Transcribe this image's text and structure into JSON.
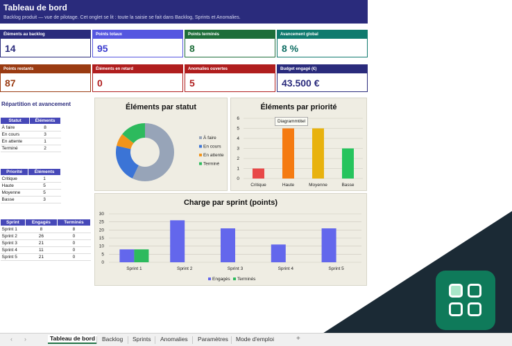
{
  "header": {
    "title": "Tableau de bord",
    "subtitle": "Backlog produit — vue de pilotage. Cet onglet se lit : toute la saisie se fait dans Backlog, Sprints et Anomalies."
  },
  "kpis": [
    {
      "label": "Éléments au backlog",
      "value": "14",
      "color": "#2a2b7c",
      "text_color": "#2a2b7c"
    },
    {
      "label": "Points totaux",
      "value": "95",
      "color": "#5556e0",
      "text_color": "#3b3ccf"
    },
    {
      "label": "Points terminés",
      "value": "8",
      "color": "#1e6e3a",
      "text_color": "#1e6e3a"
    },
    {
      "label": "Avancement global",
      "value": "8 %",
      "color": "#0f7a6e",
      "text_color": "#0f6e64"
    },
    {
      "label": "Points restants",
      "value": "87",
      "color": "#9a3b12",
      "text_color": "#9a3b12"
    },
    {
      "label": "Éléments en retard",
      "value": "0",
      "color": "#b01e1e",
      "text_color": "#b01e1e"
    },
    {
      "label": "Anomalies ouvertes",
      "value": "5",
      "color": "#b01e1e",
      "text_color": "#b01e1e"
    },
    {
      "label": "Budget engagé (€)",
      "value": "43.500 €",
      "color": "#2a2b7c",
      "text_color": "#2a2b7c"
    }
  ],
  "section_title": "Répartition et avancement",
  "status_table": {
    "headers": [
      "Statut",
      "Éléments"
    ],
    "rows": [
      [
        "À faire",
        "8"
      ],
      [
        "En cours",
        "3"
      ],
      [
        "En attente",
        "1"
      ],
      [
        "Terminé",
        "2"
      ]
    ]
  },
  "priority_table": {
    "headers": [
      "Priorité",
      "Éléments"
    ],
    "rows": [
      [
        "Critique",
        "1"
      ],
      [
        "Haute",
        "5"
      ],
      [
        "Moyenne",
        "5"
      ],
      [
        "Basse",
        "3"
      ]
    ]
  },
  "sprint_table": {
    "headers": [
      "Sprint",
      "Engagés",
      "Terminés"
    ],
    "rows": [
      [
        "Sprint 1",
        "8",
        "8"
      ],
      [
        "Sprint 2",
        "26",
        "0"
      ],
      [
        "Sprint 3",
        "21",
        "0"
      ],
      [
        "Sprint 4",
        "11",
        "0"
      ],
      [
        "Sprint 5",
        "21",
        "0"
      ]
    ]
  },
  "tooltip": "Diagrammtitel",
  "chart_data": [
    {
      "type": "pie",
      "title": "Éléments par statut",
      "categories": [
        "À faire",
        "En cours",
        "En attente",
        "Terminé"
      ],
      "values": [
        8,
        3,
        1,
        2
      ],
      "colors": [
        "#97a4b8",
        "#3b74d6",
        "#f2941b",
        "#2dba5d"
      ],
      "legend": "right"
    },
    {
      "type": "bar",
      "title": "Éléments par priorité",
      "categories": [
        "Critique",
        "Haute",
        "Moyenne",
        "Basse"
      ],
      "values": [
        1,
        5,
        5,
        3
      ],
      "colors": [
        "#e84848",
        "#f57b12",
        "#e8b20e",
        "#26c45d"
      ],
      "ylim": [
        0,
        6
      ],
      "yticks": [
        "0",
        "1",
        "2",
        "3",
        "4",
        "5",
        "6"
      ],
      "grid": true
    },
    {
      "type": "bar",
      "title": "Charge par sprint (points)",
      "categories": [
        "Sprint 1",
        "Sprint 2",
        "Sprint 3",
        "Sprint 4",
        "Sprint 5"
      ],
      "series": [
        {
          "name": "Engagés",
          "values": [
            8,
            26,
            21,
            11,
            21
          ],
          "color": "#6367ec"
        },
        {
          "name": "Terminés",
          "values": [
            8,
            0,
            0,
            0,
            0
          ],
          "color": "#2dba5d"
        }
      ],
      "ylim": [
        0,
        30
      ],
      "yticks": [
        "0",
        "5",
        "10",
        "15",
        "20",
        "25",
        "30"
      ],
      "grid": true,
      "legend": "bottom"
    }
  ],
  "tabs": [
    "Tableau de bord",
    "Backlog",
    "Sprints",
    "Anomalies",
    "Paramètres",
    "Mode d'emploi"
  ],
  "tab_nav": {
    "prev": "‹",
    "next": "›",
    "add": "+"
  }
}
